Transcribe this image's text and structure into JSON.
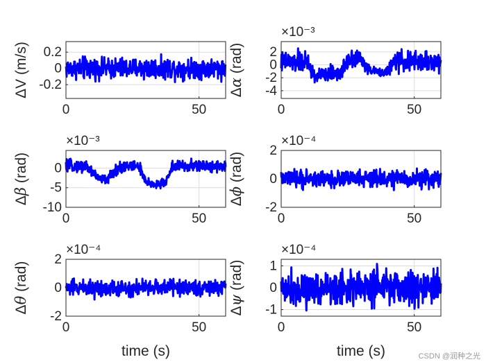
{
  "chart_data": [
    {
      "type": "line",
      "id": "dV",
      "ylabel_prefix": "Δ",
      "ylabel_symbol": "V",
      "ylabel_suffix": " (m/s)",
      "xlabel": "",
      "exponent_label": "",
      "xlim": [
        0,
        60
      ],
      "ylim": [
        -0.37,
        0.33
      ],
      "xticks": [
        0,
        50
      ],
      "xtick_labels": [
        "0",
        "50"
      ],
      "yticks": [
        -0.2,
        0,
        0.2
      ],
      "ytick_labels": [
        "-0.2",
        "0",
        "0.2"
      ],
      "series": [
        {
          "name": "ΔV",
          "color": "#0000ff",
          "x": [
            0,
            2.5,
            5,
            7.5,
            10,
            12.5,
            15,
            17.5,
            20,
            22.5,
            25,
            27.5,
            30,
            32.5,
            35,
            37.5,
            40,
            42.5,
            45,
            47.5,
            50,
            52.5,
            55,
            57.5,
            60
          ],
          "y_center": [
            0,
            0,
            0,
            0,
            0,
            0,
            0,
            0,
            0,
            0,
            0,
            0,
            0,
            0,
            0,
            0,
            0,
            0,
            0,
            0,
            0,
            0,
            0,
            0,
            0
          ],
          "y_spread": [
            0.17,
            0.16,
            0.17,
            0.19,
            0.17,
            0.16,
            0.16,
            0.17,
            0.19,
            0.16,
            0.17,
            0.16,
            0.2,
            0.17,
            0.16,
            0.17,
            0.18,
            0.16,
            0.17,
            0.16,
            0.17,
            0.18,
            0.16,
            0.17,
            0.17
          ]
        }
      ]
    },
    {
      "type": "line",
      "id": "dalpha",
      "ylabel_prefix": "Δ",
      "ylabel_symbol": "α",
      "ylabel_suffix": " (rad)",
      "xlabel": "",
      "exponent_label": "×10⁻³",
      "xlim": [
        0,
        60
      ],
      "ylim": [
        -5.2,
        3.6
      ],
      "xticks": [
        0,
        50
      ],
      "xtick_labels": [
        "0",
        "50"
      ],
      "yticks": [
        -4,
        -2,
        0,
        2
      ],
      "ytick_labels": [
        "-4",
        "-2",
        "0",
        "2"
      ],
      "series": [
        {
          "name": "Δα",
          "color": "#0000ff",
          "x": [
            0,
            2.5,
            5,
            7.5,
            10,
            12.5,
            15,
            17.5,
            20,
            22.5,
            25,
            27.5,
            30,
            32.5,
            35,
            37.5,
            40,
            42.5,
            45,
            47.5,
            50,
            52.5,
            55,
            57.5,
            60
          ],
          "y_center": [
            0.4,
            0.5,
            0.3,
            0.6,
            0.3,
            -1.8,
            -1.6,
            -1.5,
            -1.2,
            -1.4,
            1.0,
            1.2,
            0.9,
            -0.6,
            -1.0,
            -1.2,
            -1.0,
            0.5,
            0.6,
            0.5,
            0.4,
            0.6,
            0.5,
            0.4,
            0.5
          ],
          "y_spread": [
            2.2,
            2.0,
            2.1,
            2.4,
            2.0,
            1.6,
            1.5,
            1.4,
            1.6,
            1.5,
            2.0,
            2.1,
            1.8,
            1.0,
            0.8,
            0.8,
            1.0,
            2.2,
            2.0,
            2.3,
            2.2,
            2.0,
            2.2,
            2.4,
            2.1
          ]
        }
      ]
    },
    {
      "type": "line",
      "id": "dbeta",
      "ylabel_prefix": "Δ",
      "ylabel_symbol": "β",
      "ylabel_suffix": " (rad)",
      "xlabel": "",
      "exponent_label": "×10⁻³",
      "xlim": [
        0,
        60
      ],
      "ylim": [
        -10,
        4.5
      ],
      "xticks": [
        0,
        50
      ],
      "xtick_labels": [
        "0",
        "50"
      ],
      "yticks": [
        -10,
        -5,
        0
      ],
      "ytick_labels": [
        "-10",
        "-5",
        "0"
      ],
      "series": [
        {
          "name": "Δβ",
          "color": "#0000ff",
          "x": [
            0,
            2.5,
            5,
            7.5,
            10,
            12.5,
            15,
            17.5,
            20,
            22.5,
            25,
            27.5,
            30,
            32.5,
            35,
            37.5,
            40,
            42.5,
            45,
            47.5,
            50,
            52.5,
            55,
            57.5,
            60
          ],
          "y_center": [
            0.5,
            0.6,
            0.4,
            0.5,
            -1.0,
            -2.8,
            -3.0,
            -1.5,
            0.3,
            0.5,
            0.4,
            0.6,
            -3.8,
            -4.0,
            -4.2,
            -3.5,
            0.5,
            0.6,
            0.4,
            0.5,
            0.6,
            0.4,
            0.5,
            0.6,
            0.4
          ],
          "y_spread": [
            2.0,
            1.8,
            2.0,
            2.2,
            1.8,
            1.6,
            1.8,
            1.5,
            2.4,
            2.0,
            1.9,
            2.2,
            1.6,
            1.5,
            1.7,
            1.4,
            1.9,
            2.0,
            1.8,
            2.1,
            1.9,
            2.0,
            2.1,
            1.8,
            2.0
          ]
        }
      ]
    },
    {
      "type": "line",
      "id": "dphi",
      "ylabel_prefix": "Δ",
      "ylabel_symbol": "ϕ",
      "ylabel_suffix": " (rad)",
      "xlabel": "",
      "exponent_label": "×10⁻⁴",
      "xlim": [
        0,
        60
      ],
      "ylim": [
        -2,
        2
      ],
      "xticks": [
        0,
        50
      ],
      "xtick_labels": [
        "0",
        "50"
      ],
      "yticks": [
        -2,
        0,
        2
      ],
      "ytick_labels": [
        "-2",
        "0",
        "2"
      ],
      "series": [
        {
          "name": "Δϕ",
          "color": "#0000ff",
          "x": [
            0,
            2.5,
            5,
            7.5,
            10,
            12.5,
            15,
            17.5,
            20,
            22.5,
            25,
            27.5,
            30,
            32.5,
            35,
            37.5,
            40,
            42.5,
            45,
            47.5,
            50,
            52.5,
            55,
            57.5,
            60
          ],
          "y_center": [
            0,
            0,
            0,
            0,
            0,
            0,
            0,
            0,
            0,
            0,
            0,
            0,
            0,
            0,
            0,
            0,
            0,
            0,
            0,
            0,
            0,
            0,
            0,
            0,
            0
          ],
          "y_spread": [
            0.7,
            0.8,
            0.7,
            0.9,
            0.8,
            0.7,
            0.8,
            0.7,
            0.9,
            0.7,
            0.8,
            0.7,
            0.8,
            0.7,
            0.8,
            0.9,
            0.7,
            0.8,
            0.7,
            0.8,
            0.7,
            0.9,
            0.8,
            0.7,
            0.8
          ]
        }
      ]
    },
    {
      "type": "line",
      "id": "dtheta",
      "ylabel_prefix": "Δ",
      "ylabel_symbol": "θ",
      "ylabel_suffix": " (rad)",
      "xlabel": "time (s)",
      "exponent_label": "×10⁻⁴",
      "xlim": [
        0,
        60
      ],
      "ylim": [
        -2,
        2
      ],
      "xticks": [
        0,
        50
      ],
      "xtick_labels": [
        "0",
        "50"
      ],
      "yticks": [
        -2,
        0,
        2
      ],
      "ytick_labels": [
        "-2",
        "0",
        "2"
      ],
      "series": [
        {
          "name": "Δθ",
          "color": "#0000ff",
          "x": [
            0,
            2.5,
            5,
            7.5,
            10,
            12.5,
            15,
            17.5,
            20,
            22.5,
            25,
            27.5,
            30,
            32.5,
            35,
            37.5,
            40,
            42.5,
            45,
            47.5,
            50,
            52.5,
            55,
            57.5,
            60
          ],
          "y_center": [
            0,
            0,
            0,
            0,
            0,
            0,
            0,
            0,
            0,
            0,
            0,
            0,
            0,
            0,
            0,
            0,
            0,
            0,
            0,
            0,
            0,
            0,
            0,
            0,
            0
          ],
          "y_spread": [
            0.7,
            0.8,
            0.7,
            0.8,
            0.9,
            0.7,
            0.8,
            0.7,
            0.8,
            0.7,
            0.9,
            0.8,
            0.7,
            0.8,
            0.7,
            0.8,
            0.9,
            0.7,
            0.8,
            0.7,
            0.8,
            0.7,
            0.8,
            0.7,
            0.8
          ]
        }
      ]
    },
    {
      "type": "line",
      "id": "dpsi",
      "ylabel_prefix": "Δ",
      "ylabel_symbol": "ψ",
      "ylabel_suffix": " (rad)",
      "xlabel": "time (s)",
      "exponent_label": "×10⁻⁴",
      "xlim": [
        0,
        60
      ],
      "ylim": [
        -1.3,
        1.3
      ],
      "xticks": [
        0,
        50
      ],
      "xtick_labels": [
        "0",
        "50"
      ],
      "yticks": [
        -1,
        0,
        1
      ],
      "ytick_labels": [
        "-1",
        "0",
        "1"
      ],
      "series": [
        {
          "name": "Δψ",
          "color": "#0000ff",
          "x": [
            0,
            2.5,
            5,
            7.5,
            10,
            12.5,
            15,
            17.5,
            20,
            22.5,
            25,
            27.5,
            30,
            32.5,
            35,
            37.5,
            40,
            42.5,
            45,
            47.5,
            50,
            52.5,
            55,
            57.5,
            60
          ],
          "y_center": [
            0,
            0,
            0,
            0,
            0,
            0,
            0,
            0,
            0,
            0,
            0,
            0,
            0,
            0,
            0,
            0,
            0,
            0,
            0,
            0,
            0,
            0,
            0,
            0,
            0
          ],
          "y_spread": [
            0.9,
            1.0,
            1.1,
            1.0,
            1.2,
            0.9,
            1.1,
            1.0,
            1.2,
            1.0,
            1.1,
            0.9,
            1.0,
            1.1,
            1.2,
            1.0,
            0.9,
            1.1,
            1.0,
            1.1,
            1.2,
            1.0,
            0.9,
            1.1,
            1.0
          ]
        }
      ]
    }
  ],
  "watermark": "CSDN @润种之光"
}
